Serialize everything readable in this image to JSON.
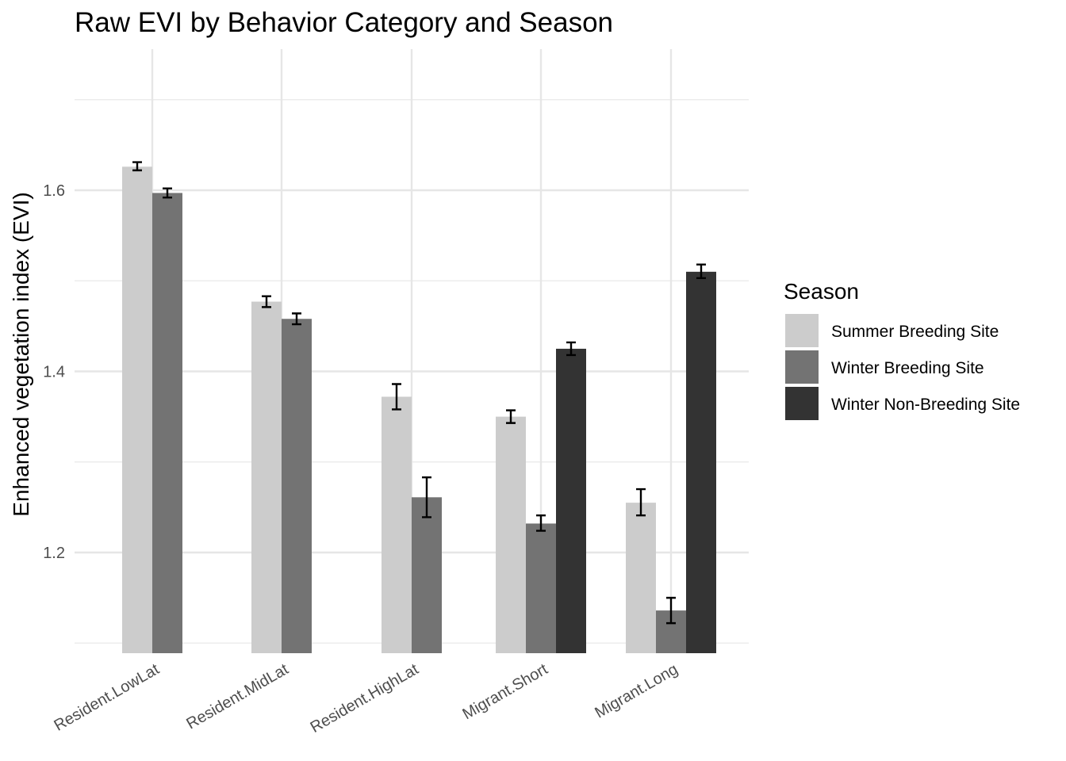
{
  "chart_data": {
    "type": "bar",
    "title": "Raw EVI by Behavior Category and Season",
    "xlabel": "",
    "ylabel": "Enhanced vegetation index (EVI)",
    "ylim": [
      1.1,
      1.71
    ],
    "yticks": [
      1.2,
      1.4,
      1.6
    ],
    "ytick_labels": [
      "1.2",
      "1.4",
      "1.6"
    ],
    "grid": true,
    "legend_position": "right",
    "legend_title": "Season",
    "categories": [
      "Resident.LowLat",
      "Resident.MidLat",
      "Resident.HighLat",
      "Migrant.Short",
      "Migrant.Long"
    ],
    "series": [
      {
        "name": "Summer Breeding Site",
        "color": "#cccccc",
        "values": [
          1.626,
          1.477,
          1.372,
          1.35,
          1.255
        ],
        "err_low": [
          1.622,
          1.471,
          1.358,
          1.343,
          1.241
        ],
        "err_high": [
          1.631,
          1.483,
          1.386,
          1.357,
          1.27
        ]
      },
      {
        "name": "Winter Breeding Site",
        "color": "#737373",
        "values": [
          1.597,
          1.458,
          1.261,
          1.232,
          1.136
        ],
        "err_low": [
          1.592,
          1.452,
          1.239,
          1.224,
          1.122
        ],
        "err_high": [
          1.602,
          1.464,
          1.283,
          1.241,
          1.15
        ]
      },
      {
        "name": "Winter Non-Breeding Site",
        "color": "#333333",
        "values": [
          null,
          null,
          null,
          1.425,
          1.51
        ],
        "err_low": [
          null,
          null,
          null,
          1.418,
          1.503
        ],
        "err_high": [
          null,
          null,
          null,
          1.432,
          1.518
        ]
      }
    ]
  }
}
